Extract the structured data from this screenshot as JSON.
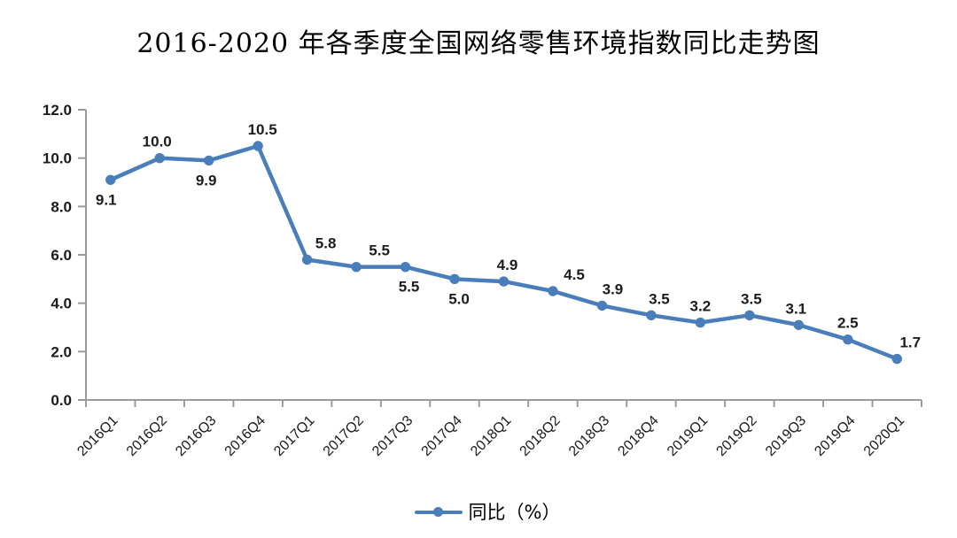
{
  "chart_data": {
    "type": "line",
    "title": "2016-2020 年各季度全国网络零售环境指数同比走势图",
    "categories": [
      "2016Q1",
      "2016Q2",
      "2016Q3",
      "2016Q4",
      "2017Q1",
      "2017Q2",
      "2017Q3",
      "2017Q4",
      "2018Q1",
      "2018Q2",
      "2018Q3",
      "2018Q4",
      "2019Q1",
      "2019Q2",
      "2019Q3",
      "2019Q4",
      "2020Q1"
    ],
    "series": [
      {
        "name": "同比（%）",
        "values": [
          9.1,
          10.0,
          9.9,
          10.5,
          5.8,
          5.5,
          5.5,
          5.0,
          4.9,
          4.5,
          3.9,
          3.5,
          3.2,
          3.5,
          3.1,
          2.5,
          1.7
        ]
      }
    ],
    "xlabel": "",
    "ylabel": "",
    "ylim": [
      0,
      12
    ],
    "ytick_step": 2,
    "ytick_labels": [
      "0.0",
      "2.0",
      "4.0",
      "6.0",
      "8.0",
      "10.0",
      "12.0"
    ],
    "grid": false,
    "legend_position": "bottom",
    "x_label_rotation_deg": -45,
    "data_label_positions": [
      "below",
      "above",
      "below",
      "above",
      "above",
      "above",
      "below",
      "below",
      "above",
      "above",
      "above",
      "above",
      "above",
      "above",
      "above",
      "above",
      "above"
    ],
    "data_label_dx": [
      -5,
      -3,
      -3,
      5,
      21,
      26,
      4,
      5,
      4,
      24,
      12,
      9,
      0,
      2,
      -3,
      0,
      15
    ],
    "colors": {
      "line": "#4A7EBB",
      "marker": "#4A7EBB",
      "axis": "#9B9B9B",
      "text": "#1a1a1a",
      "title": "#000000"
    }
  }
}
